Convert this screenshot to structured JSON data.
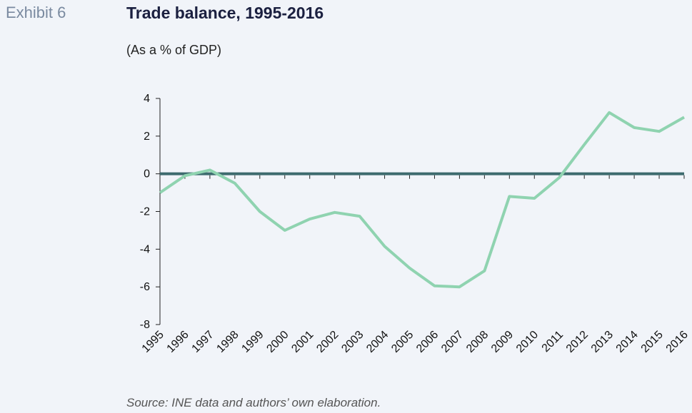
{
  "exhibit_label": "Exhibit 6",
  "source": "Source: INE data and authors’ own elaboration.",
  "chart_data": {
    "type": "line",
    "title": "Trade balance, 1995-2016",
    "subtitle": "(As a % of GDP)",
    "xlabel": "",
    "ylabel": "",
    "x": [
      "1995",
      "1996",
      "1997",
      "1998",
      "1999",
      "2000",
      "2001",
      "2002",
      "2003",
      "2004",
      "2005",
      "2006",
      "2007",
      "2008",
      "2009",
      "2010",
      "2011",
      "2012",
      "2013",
      "2014",
      "2015",
      "2016"
    ],
    "series": [
      {
        "values": [
          -1.0,
          -0.1,
          0.2,
          -0.5,
          -2.0,
          -3.0,
          -2.4,
          -2.05,
          -2.25,
          -3.85,
          -5.0,
          -5.95,
          -6.0,
          -5.15,
          -1.2,
          -1.3,
          -0.2,
          1.55,
          3.25,
          2.45,
          2.25,
          3.0
        ],
        "color": "#8fd3b0"
      }
    ],
    "ylim": [
      -8,
      4
    ],
    "yticks": [
      4,
      2,
      0,
      -2,
      -4,
      -6,
      -8
    ],
    "zero_line_color": "#3d6b6e",
    "grid": false
  }
}
